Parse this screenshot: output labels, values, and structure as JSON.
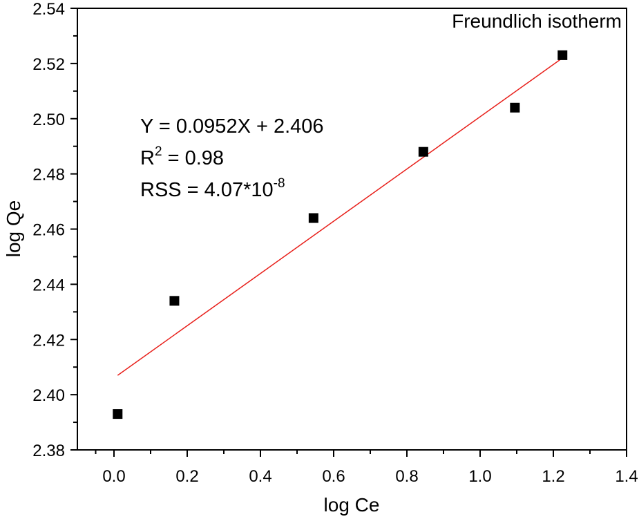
{
  "chart_data": {
    "type": "scatter",
    "title": "Freundlich isotherm",
    "xlabel": "log Ce",
    "ylabel": "log Qe",
    "xlim": [
      -0.1,
      1.4
    ],
    "ylim": [
      2.38,
      2.54
    ],
    "xticks": [
      "0.0",
      "0.2",
      "0.4",
      "0.6",
      "0.8",
      "1.0",
      "1.2",
      "1.4"
    ],
    "yticks": [
      "2.38",
      "2.40",
      "2.42",
      "2.44",
      "2.46",
      "2.48",
      "2.50",
      "2.52",
      "2.54"
    ],
    "grid": false,
    "points": {
      "x": [
        0.01,
        0.165,
        0.545,
        0.845,
        1.095,
        1.225
      ],
      "y": [
        2.393,
        2.434,
        2.464,
        2.488,
        2.504,
        2.523
      ]
    },
    "fit_line": {
      "x": [
        0.01,
        1.225
      ],
      "y": [
        2.407,
        2.522
      ],
      "color": "#e8201b"
    },
    "marker_color": "#000000",
    "annotations": {
      "equation": "Y = 0.0952X + 2.406",
      "r2_prefix": "R",
      "r2_sup": "2",
      "r2_value": " = 0.98",
      "rss_prefix": "RSS = 4.07*10",
      "rss_sup": "-8"
    }
  }
}
